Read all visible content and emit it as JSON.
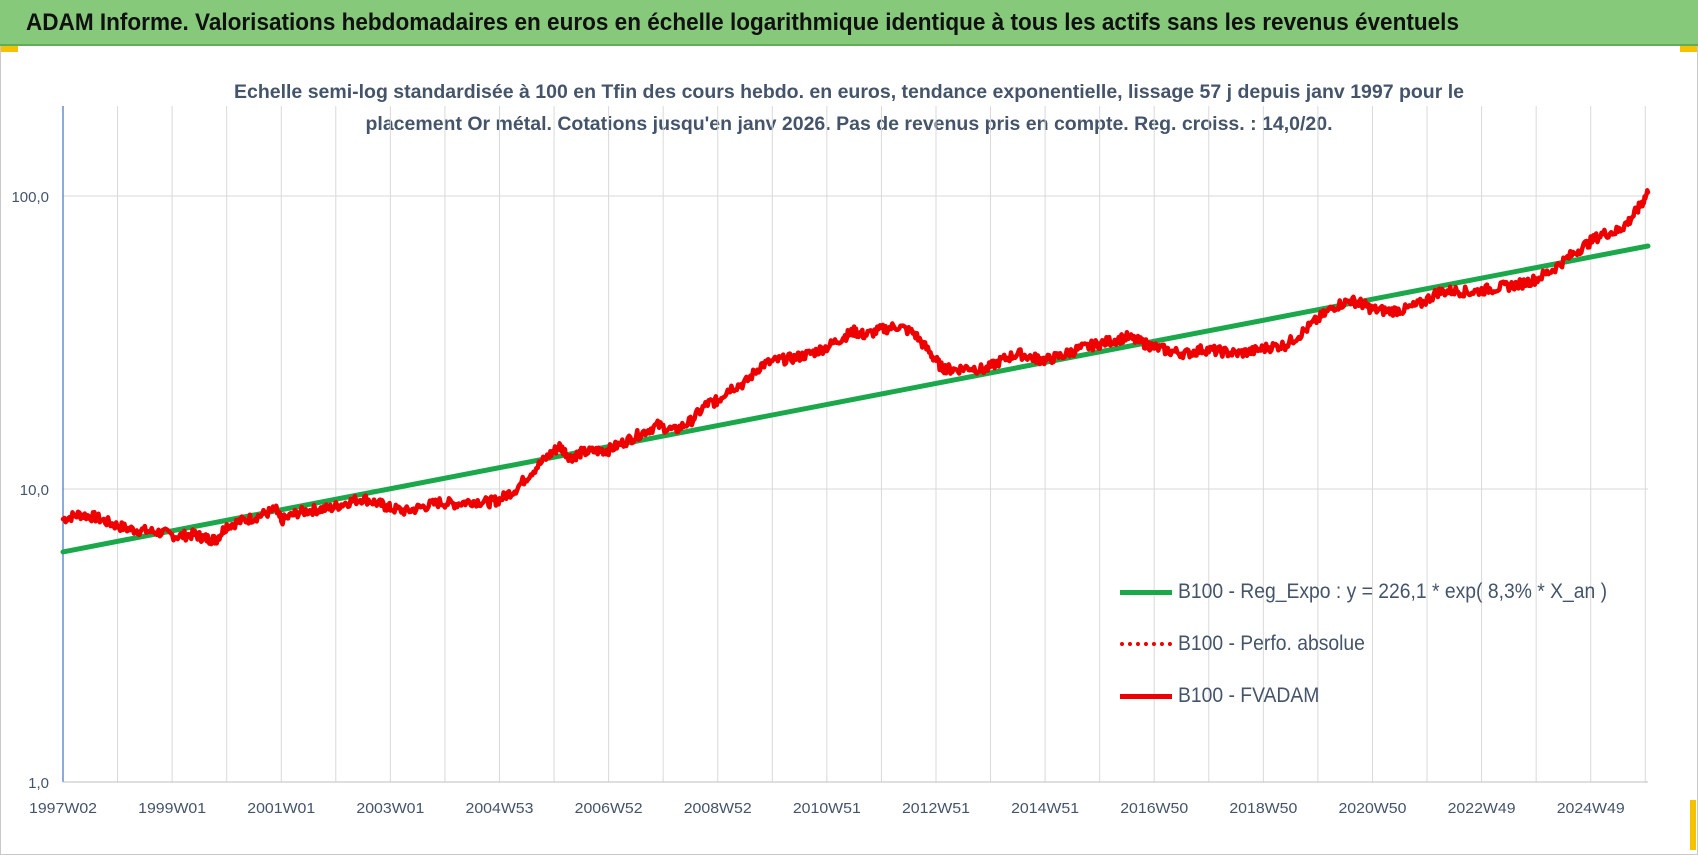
{
  "header": {
    "title": "ADAM Informe. Valorisations hebdomadaires en euros en échelle logarithmique identique à tous les actifs sans les revenus éventuels"
  },
  "colors": {
    "header_bg": "#86c97b",
    "corner_accent": "#f6c100",
    "trend_line": "#1aa84b",
    "fvadam_line": "#ee0000",
    "perfo_line": "#ee0000",
    "text": "#44546a",
    "grid": "#d9d9d9",
    "axis": "#4472c4"
  },
  "chart_data": {
    "type": "line",
    "title_lines": [
      "Echelle semi-log standardisée à 100 en Tfin des cours hebdo. en euros, tendance exponentielle, lissage 57 j depuis janv 1997 pour le",
      "placement Or métal. Cotations jusqu'en janv 2026. Pas de revenus pris en compte. Reg. croiss. : 14,0/20."
    ],
    "y_scale": "log",
    "ylim": [
      1,
      200
    ],
    "y_ticks": [
      {
        "value": 1,
        "label": "1,0"
      },
      {
        "value": 10,
        "label": "10,0"
      },
      {
        "value": 100,
        "label": "100,0"
      }
    ],
    "xlim": [
      1997.0,
      2026.05
    ],
    "x_tick_labels": [
      {
        "x": 1997.0,
        "label": "1997W02"
      },
      {
        "x": 1999.0,
        "label": "1999W01"
      },
      {
        "x": 2001.0,
        "label": "2001W01"
      },
      {
        "x": 2003.0,
        "label": "2003W01"
      },
      {
        "x": 2005.0,
        "label": "2004W53"
      },
      {
        "x": 2007.0,
        "label": "2006W52"
      },
      {
        "x": 2009.0,
        "label": "2008W52"
      },
      {
        "x": 2011.0,
        "label": "2010W51"
      },
      {
        "x": 2013.0,
        "label": "2012W51"
      },
      {
        "x": 2015.0,
        "label": "2014W51"
      },
      {
        "x": 2017.0,
        "label": "2016W50"
      },
      {
        "x": 2019.0,
        "label": "2018W50"
      },
      {
        "x": 2021.0,
        "label": "2020W50"
      },
      {
        "x": 2023.0,
        "label": "2022W49"
      },
      {
        "x": 2025.0,
        "label": "2024W49"
      }
    ],
    "grid": true,
    "legend_position": "bottom-right",
    "series": [
      {
        "name": "B100 - Reg_Expo : y = 226,1 * exp( 8,3% * X_an )",
        "style": "solid-green",
        "x": [
          1997.0,
          2026.05
        ],
        "y": [
          6.1,
          67.5
        ]
      },
      {
        "name": "B100 - Perfo. absolue",
        "style": "dotted-red",
        "x": [],
        "y": []
      },
      {
        "name": "B100 - FVADAM",
        "style": "solid-red",
        "x": [
          1997.0,
          1997.3,
          1997.6,
          1997.9,
          1998.2,
          1998.5,
          1998.8,
          1999.1,
          1999.4,
          1999.6,
          1999.8,
          2000.0,
          2000.3,
          2000.6,
          2000.9,
          2001.0,
          2001.3,
          2001.6,
          2001.9,
          2002.2,
          2002.5,
          2002.8,
          2003.0,
          2003.3,
          2003.6,
          2003.9,
          2004.2,
          2004.5,
          2004.8,
          2005.0,
          2005.3,
          2005.6,
          2005.9,
          2006.1,
          2006.3,
          2006.5,
          2006.8,
          2007.0,
          2007.3,
          2007.6,
          2007.9,
          2008.2,
          2008.5,
          2008.8,
          2009.0,
          2009.2,
          2009.5,
          2009.8,
          2010.1,
          2010.4,
          2010.7,
          2011.0,
          2011.3,
          2011.5,
          2011.7,
          2012.0,
          2012.3,
          2012.6,
          2012.9,
          2013.1,
          2013.3,
          2013.6,
          2013.9,
          2014.2,
          2014.5,
          2014.8,
          2015.0,
          2015.3,
          2015.6,
          2015.9,
          2016.2,
          2016.5,
          2016.8,
          2017.0,
          2017.3,
          2017.6,
          2017.9,
          2018.2,
          2018.5,
          2018.8,
          2019.1,
          2019.4,
          2019.7,
          2020.0,
          2020.3,
          2020.6,
          2020.8,
          2021.0,
          2021.3,
          2021.6,
          2021.9,
          2022.2,
          2022.5,
          2022.8,
          2023.1,
          2023.4,
          2023.7,
          2024.0,
          2024.3,
          2024.6,
          2024.9,
          2025.2,
          2025.5,
          2025.7,
          2025.9,
          2026.05
        ],
        "y": [
          7.9,
          8.2,
          8.0,
          7.6,
          7.3,
          7.2,
          7.1,
          6.9,
          7.0,
          6.8,
          6.7,
          7.5,
          7.8,
          8.1,
          8.5,
          7.8,
          8.3,
          8.5,
          8.6,
          9.0,
          9.3,
          8.9,
          8.6,
          8.4,
          8.7,
          9.0,
          8.9,
          9.1,
          9.0,
          9.2,
          10.0,
          11.5,
          13.0,
          14.0,
          12.8,
          13.3,
          13.5,
          13.6,
          14.5,
          15.5,
          16.5,
          15.8,
          17.0,
          19.5,
          20.0,
          22.0,
          23.0,
          26.5,
          27.5,
          28.0,
          29.0,
          30.5,
          33.0,
          34.5,
          33.5,
          35.0,
          36.0,
          34.0,
          29.0,
          26.0,
          25.5,
          26.0,
          25.5,
          27.5,
          29.0,
          28.0,
          27.5,
          28.5,
          30.0,
          31.0,
          32.0,
          33.0,
          31.5,
          30.5,
          29.5,
          29.0,
          30.0,
          29.5,
          29.0,
          29.5,
          30.5,
          31.0,
          34.0,
          38.0,
          42.0,
          44.0,
          43.0,
          41.0,
          40.5,
          41.0,
          43.0,
          47.0,
          47.5,
          47.0,
          48.0,
          49.0,
          50.0,
          52.0,
          56.0,
          62.0,
          68.0,
          74.0,
          76.0,
          82.0,
          92.0,
          103.0
        ]
      }
    ]
  }
}
